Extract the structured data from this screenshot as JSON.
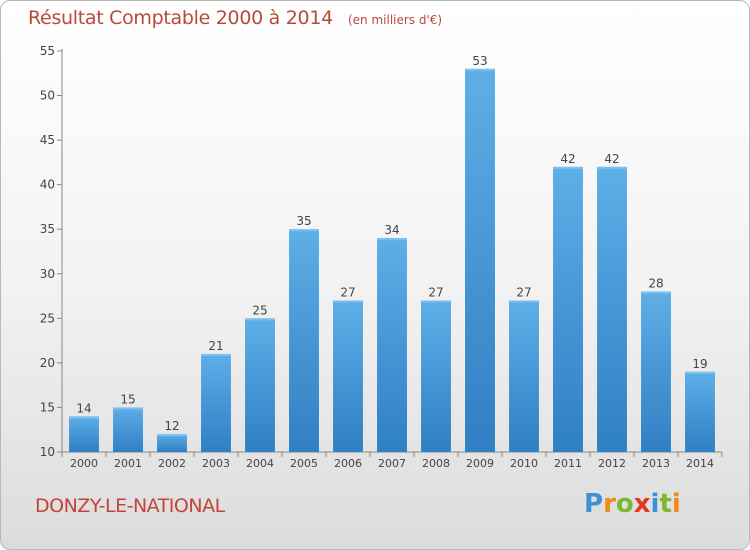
{
  "header": {
    "title": "Résultat Comptable 2000 à 2014",
    "unit": "(en milliers d'€)"
  },
  "commune": "DONZY-LE-NATIONAL",
  "logo": {
    "letters": [
      "P",
      "r",
      "o",
      "x",
      "i",
      "t",
      "i"
    ],
    "colors": [
      "#3d8fd6",
      "#f08a1c",
      "#7cb82f",
      "#e2381e",
      "#3d8fd6",
      "#7cb82f",
      "#f08a1c"
    ]
  },
  "colors": {
    "bar_light": "#5eaee8",
    "bar_dark": "#2f7fc4",
    "axis": "#888888",
    "grid": "#cccccc"
  },
  "chart_data": {
    "type": "bar",
    "title": "Résultat Comptable 2000 à 2014",
    "subtitle": "(en milliers d'€)",
    "xlabel": "",
    "ylabel": "",
    "categories": [
      "2000",
      "2001",
      "2002",
      "2003",
      "2004",
      "2005",
      "2006",
      "2007",
      "2008",
      "2009",
      "2010",
      "2011",
      "2012",
      "2013",
      "2014"
    ],
    "values": [
      14,
      15,
      12,
      21,
      25,
      35,
      27,
      34,
      27,
      53,
      27,
      42,
      42,
      28,
      19
    ],
    "ylim": [
      10,
      55
    ],
    "yticks": [
      10,
      15,
      20,
      25,
      30,
      35,
      40,
      45,
      50,
      55
    ],
    "grid": false,
    "data_labels": true
  }
}
